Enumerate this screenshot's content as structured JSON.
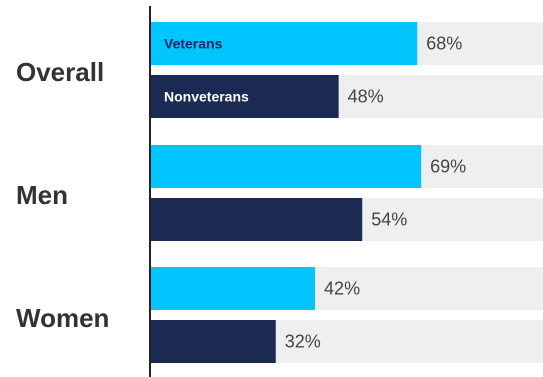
{
  "chart_data": {
    "type": "bar",
    "orientation": "horizontal",
    "categories": [
      "Overall",
      "Men",
      "Women"
    ],
    "series": [
      {
        "name": "Veterans",
        "values": [
          68,
          69,
          42
        ],
        "color": "#00c5ff",
        "label_color": "#0b2a5c"
      },
      {
        "name": "Nonveterans",
        "values": [
          48,
          54,
          32
        ],
        "color": "#1a2a52",
        "label_color": "#ffffff"
      }
    ],
    "value_suffix": "%",
    "xlim": [
      0,
      100
    ],
    "track_color": "#efefef",
    "axis_color": "#222222",
    "legend": "inline-first-category",
    "grid": false
  }
}
